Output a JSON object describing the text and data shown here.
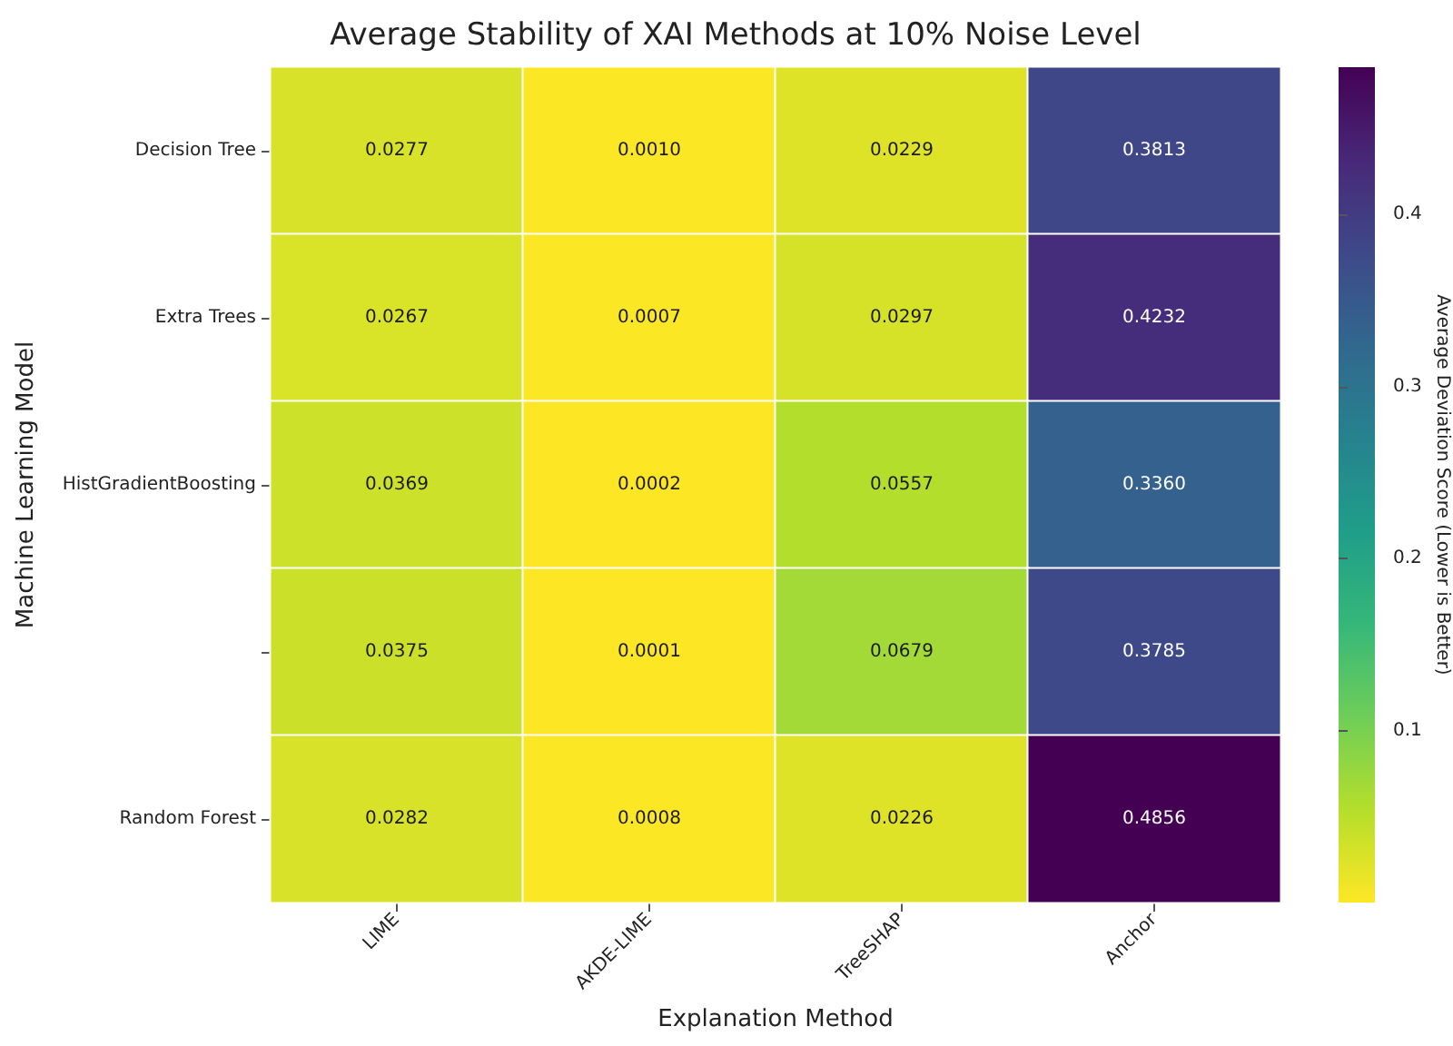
{
  "chart_data": {
    "type": "heatmap",
    "title": "Average Stability of XAI Methods at 10% Noise Level",
    "xlabel": "Explanation Method",
    "ylabel": "Machine Learning Model",
    "clabel": "Average Deviation Score (Lower is Better)",
    "categories": [
      "LIME",
      "AKDE-LIME",
      "TreeSHAP",
      "Anchor"
    ],
    "y_categories": [
      "Decision Tree",
      "Extra Trees",
      "HistGradientBoosting",
      null,
      "Random Forest"
    ],
    "cells": [
      [
        0.0277,
        0.001,
        0.0229,
        0.3813
      ],
      [
        0.0267,
        0.0007,
        0.0297,
        0.4232
      ],
      [
        0.0369,
        0.0002,
        0.0557,
        0.336
      ],
      [
        0.0375,
        0.0001,
        0.0679,
        0.3785
      ],
      [
        0.0282,
        0.0008,
        0.0226,
        0.4856
      ]
    ],
    "cell_labels": [
      [
        "0.0277",
        "0.0010",
        "0.0229",
        "0.3813"
      ],
      [
        "0.0267",
        "0.0007",
        "0.0297",
        "0.4232"
      ],
      [
        "0.0369",
        "0.0002",
        "0.0557",
        "0.3360"
      ],
      [
        "0.0375",
        "0.0001",
        "0.0679",
        "0.3785"
      ],
      [
        "0.0282",
        "0.0008",
        "0.0226",
        "0.4856"
      ]
    ],
    "clim": [
      0.0001,
      0.4856
    ],
    "cticks": [
      0.1,
      0.2,
      0.3,
      0.4
    ]
  }
}
